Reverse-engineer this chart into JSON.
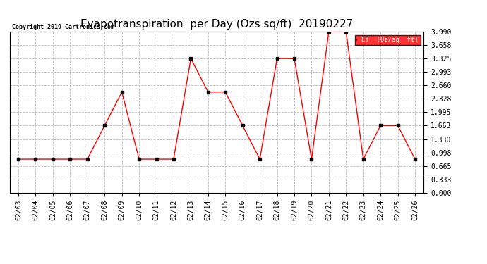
{
  "title": "Evapotranspiration  per Day (Ozs sq/ft)  20190227",
  "copyright": "Copyright 2019 Cartronics.com",
  "dates": [
    "02/03",
    "02/04",
    "02/05",
    "02/06",
    "02/07",
    "02/08",
    "02/09",
    "02/10",
    "02/11",
    "02/12",
    "02/13",
    "02/14",
    "02/15",
    "02/16",
    "02/17",
    "02/18",
    "02/19",
    "02/20",
    "02/21",
    "02/22",
    "02/23",
    "02/24",
    "02/25",
    "02/26"
  ],
  "values": [
    0.832,
    0.832,
    0.832,
    0.832,
    0.832,
    1.663,
    2.494,
    0.832,
    0.832,
    0.832,
    3.325,
    2.494,
    2.494,
    1.663,
    0.832,
    3.325,
    3.325,
    0.832,
    3.99,
    3.99,
    0.832,
    1.663,
    1.663,
    0.832
  ],
  "ylim": [
    0.0,
    3.99
  ],
  "yticks": [
    0.0,
    0.333,
    0.665,
    0.998,
    1.33,
    1.663,
    1.995,
    2.328,
    2.66,
    2.993,
    3.325,
    3.658,
    3.99
  ],
  "line_color": "red",
  "marker_color": "black",
  "bg_color": "white",
  "grid_color": "#bbbbbb",
  "title_fontsize": 11,
  "tick_fontsize": 7,
  "copyright_fontsize": 6
}
